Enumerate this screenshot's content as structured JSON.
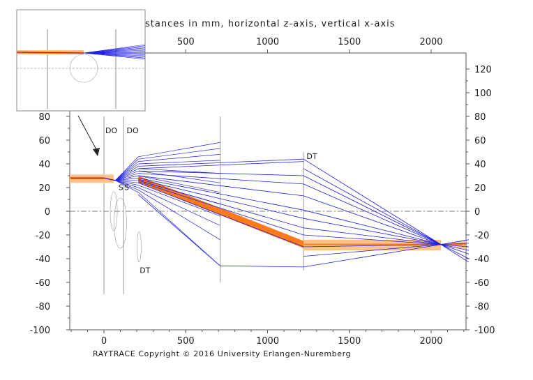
{
  "title": "stances in mm, horizontal z-axis, vertical x-axis",
  "copyright": "RAYTRACE Copyright © 2016 University Erlangen-Nuremberg",
  "x_axis": {
    "range": [
      -200,
      2230
    ],
    "ticks": [
      0,
      500,
      1000,
      1500,
      2000
    ],
    "top_ticks": [
      500,
      1000,
      1500,
      2000
    ]
  },
  "y_axis_left": {
    "range": [
      -105,
      85
    ],
    "ticks": [
      80,
      60,
      40,
      20,
      0,
      -20,
      -40,
      -60,
      -80,
      -100
    ]
  },
  "y_axis_right": {
    "range": [
      -105,
      125
    ],
    "ticks": [
      120,
      100,
      80,
      60,
      40,
      20,
      0,
      -20,
      -40,
      -60,
      -80,
      -100
    ]
  },
  "colors": {
    "ray": "#1f1fe6",
    "beam": "#ff7a1a",
    "beam_halo": "#ffc38a",
    "axis": "#808080",
    "frame": "#555555",
    "element": "#999999"
  },
  "element_labels": [
    {
      "text": "DO",
      "z": 0,
      "x": 66
    },
    {
      "text": "DO",
      "z": 130,
      "x": 66
    },
    {
      "text": "S",
      "z": 80,
      "x": 18
    },
    {
      "text": "S",
      "z": 115,
      "x": 18
    },
    {
      "text": "DT",
      "z": 210,
      "x": -52
    },
    {
      "text": "DT",
      "z": 1230,
      "x": 44
    }
  ],
  "optical_elements": [
    {
      "z": 0,
      "x_top": 80,
      "x_bottom": -70
    },
    {
      "z": 120,
      "x_top": 80,
      "x_bottom": -70
    },
    {
      "z": 710,
      "x_top": 80,
      "x_bottom": -60
    },
    {
      "z": 1220,
      "x_top": 50,
      "x_bottom": -50
    }
  ],
  "beam": {
    "incoming": {
      "z": [
        -200,
        0,
        70
      ],
      "x": [
        28,
        28,
        26
      ]
    },
    "focus_z": 2060,
    "focus_x": -28
  },
  "inset": {
    "description_hidden": true
  }
}
